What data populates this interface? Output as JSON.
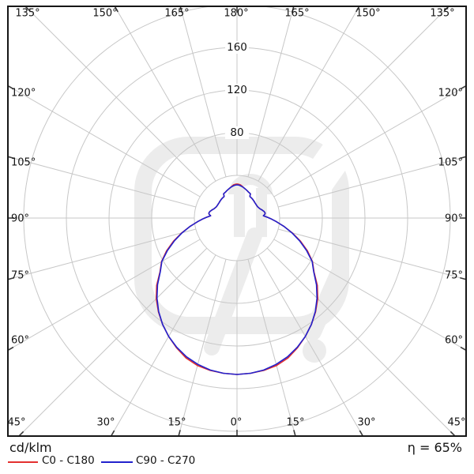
{
  "chart_data": {
    "type": "polar_photometric",
    "unit_label": "cd/klm",
    "efficiency_label": "η = 65%",
    "angle_grid_step_deg": 15,
    "radial_rings_cd_klm": [
      40,
      80,
      120,
      160,
      200
    ],
    "radial_ring_labels": [
      "80",
      "120",
      "160"
    ],
    "angle_labels": {
      "top": [
        "135°",
        "150°",
        "165°",
        "180°",
        "165°",
        "150°",
        "135°"
      ],
      "left": [
        "120°",
        "105°",
        "90°",
        "75°",
        "60°"
      ],
      "right": [
        "120°",
        "105°",
        "90°",
        "75°",
        "60°"
      ],
      "bottom": [
        "45°",
        "30°",
        "15°",
        "0°",
        "15°",
        "30°",
        "45°"
      ]
    },
    "legend": [
      {
        "label": "C0 - C180",
        "color": "#e3302f"
      },
      {
        "label": "C90 - C270",
        "color": "#2222cd"
      }
    ],
    "colors": {
      "grid": "#c7c7c7",
      "border": "#161616",
      "tick": "#3a3a3a",
      "text": "#141414",
      "watermark": "#ececec",
      "c0_c180": "#e3302f",
      "c90_c270": "#2222cd"
    },
    "series": [
      {
        "name": "C0 - C180",
        "color": "#e3302f",
        "symmetric_mirror": true,
        "points_theta_deg_r_cdklm": [
          [
            0,
            146.7
          ],
          [
            5,
            146.1
          ],
          [
            10,
            145.1
          ],
          [
            15,
            143.2
          ],
          [
            20,
            139.7
          ],
          [
            25,
            134.2
          ],
          [
            30,
            128.2
          ],
          [
            35,
            121.7
          ],
          [
            40,
            114.7
          ],
          [
            45,
            107.1
          ],
          [
            50,
            98.3
          ],
          [
            55,
            88.2
          ],
          [
            60,
            81.7
          ],
          [
            65,
            72.9
          ],
          [
            70,
            63.4
          ],
          [
            75,
            53.6
          ],
          [
            80,
            44.5
          ],
          [
            83,
            39.5
          ],
          [
            85,
            36.7
          ],
          [
            87,
            34.0
          ],
          [
            89,
            31.5
          ],
          [
            91,
            29.0
          ],
          [
            93,
            26.8
          ],
          [
            95,
            24.8
          ],
          [
            96,
            25.4
          ],
          [
            98,
            26.5
          ],
          [
            100,
            26.8
          ],
          [
            102,
            26.5
          ],
          [
            104,
            26.0
          ],
          [
            106,
            25.3
          ],
          [
            108,
            24.6
          ],
          [
            110,
            23.9
          ],
          [
            113,
            23.0
          ],
          [
            116,
            22.4
          ],
          [
            119,
            22.0
          ],
          [
            122,
            21.9
          ],
          [
            125,
            21.9
          ],
          [
            128,
            22.0
          ],
          [
            131,
            22.1
          ],
          [
            134,
            22.4
          ],
          [
            137,
            22.6
          ],
          [
            140,
            22.9
          ],
          [
            143,
            23.1
          ],
          [
            146,
            23.3
          ],
          [
            149,
            23.5
          ],
          [
            150,
            24.5
          ],
          [
            151,
            25.9
          ],
          [
            153,
            26.2
          ],
          [
            156,
            26.6
          ],
          [
            159,
            27.2
          ],
          [
            162,
            27.9
          ],
          [
            165,
            28.5
          ],
          [
            168,
            29.2
          ],
          [
            171,
            30.3
          ],
          [
            174,
            31.3
          ],
          [
            177,
            31.7
          ],
          [
            180,
            31.9
          ]
        ]
      },
      {
        "name": "C90 - C270",
        "color": "#2222cd",
        "symmetric_mirror": true,
        "points_theta_deg_r_cdklm": [
          [
            0,
            146.7
          ],
          [
            5,
            146.1
          ],
          [
            10,
            144.7
          ],
          [
            15,
            142.0
          ],
          [
            20,
            138.5
          ],
          [
            25,
            133.7
          ],
          [
            30,
            128.2
          ],
          [
            35,
            121.7
          ],
          [
            40,
            114.3
          ],
          [
            45,
            106.1
          ],
          [
            50,
            97.3
          ],
          [
            55,
            87.8
          ],
          [
            60,
            81.3
          ],
          [
            65,
            71.9
          ],
          [
            70,
            62.4
          ],
          [
            75,
            53.2
          ],
          [
            80,
            44.5
          ],
          [
            83,
            39.5
          ],
          [
            85,
            36.7
          ],
          [
            87,
            34.0
          ],
          [
            89,
            31.5
          ],
          [
            91,
            29.0
          ],
          [
            93,
            26.8
          ],
          [
            95,
            24.8
          ],
          [
            96,
            25.4
          ],
          [
            98,
            26.5
          ],
          [
            100,
            26.8
          ],
          [
            102,
            26.5
          ],
          [
            104,
            26.0
          ],
          [
            106,
            25.3
          ],
          [
            108,
            24.6
          ],
          [
            110,
            23.9
          ],
          [
            113,
            23.0
          ],
          [
            116,
            22.4
          ],
          [
            119,
            22.0
          ],
          [
            122,
            21.9
          ],
          [
            125,
            21.9
          ],
          [
            128,
            22.0
          ],
          [
            131,
            22.1
          ],
          [
            134,
            22.4
          ],
          [
            137,
            22.6
          ],
          [
            140,
            22.9
          ],
          [
            143,
            23.1
          ],
          [
            146,
            23.3
          ],
          [
            149,
            23.5
          ],
          [
            150,
            24.5
          ],
          [
            151,
            25.9
          ],
          [
            153,
            26.2
          ],
          [
            156,
            26.6
          ],
          [
            159,
            27.2
          ],
          [
            162,
            27.9
          ],
          [
            165,
            28.5
          ],
          [
            168,
            29.2
          ],
          [
            171,
            29.9
          ],
          [
            174,
            30.5
          ],
          [
            177,
            30.9
          ],
          [
            180,
            31.1
          ]
        ]
      }
    ]
  }
}
